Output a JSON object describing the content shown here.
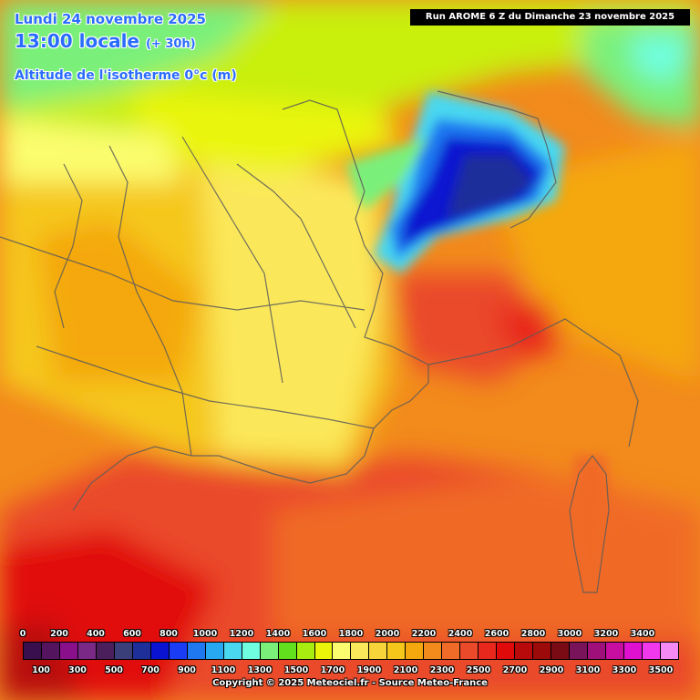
{
  "header": {
    "date": "Lundi 24 novembre 2025",
    "time": "13:00 locale",
    "lead": "(+ 30h)",
    "parameter": "Altitude de l'isotherme 0°c (m)",
    "run": "Run AROME 6 Z du Dimanche 23 novembre 2025"
  },
  "legend": {
    "top_labels": [
      "0",
      "200",
      "400",
      "600",
      "800",
      "1000",
      "1200",
      "1400",
      "1600",
      "1800",
      "2000",
      "2200",
      "2400",
      "2600",
      "2800",
      "3000",
      "3200",
      "3400"
    ],
    "bottom_labels": [
      "100",
      "300",
      "500",
      "700",
      "900",
      "1100",
      "1300",
      "1500",
      "1700",
      "1900",
      "2100",
      "2300",
      "2500",
      "2700",
      "2900",
      "3100",
      "3300",
      "3500"
    ],
    "colors": [
      "#3a0f4d",
      "#55145e",
      "#8a0f8a",
      "#7a2a86",
      "#4a1f5c",
      "#3a3f7a",
      "#1f2f9a",
      "#0a14d0",
      "#1a3cf5",
      "#1f78f0",
      "#29a8f2",
      "#49d8f0",
      "#6fffe0",
      "#7af07a",
      "#62e01e",
      "#a8ec10",
      "#eaf50a",
      "#fbfd6e",
      "#fbe85a",
      "#f7d43a",
      "#f5c71a",
      "#f4a80e",
      "#f28a1c",
      "#f06a28",
      "#ea4a2a",
      "#e8281c",
      "#e10a0a",
      "#b80a0a",
      "#9c0a0a",
      "#7a0a14",
      "#7a145a",
      "#a0107a",
      "#c80ea0",
      "#e010d0",
      "#f238ec",
      "#f58af5"
    ]
  },
  "copyright": "Copyright © 2025 Meteociel.fr - Source Meteo-France"
}
